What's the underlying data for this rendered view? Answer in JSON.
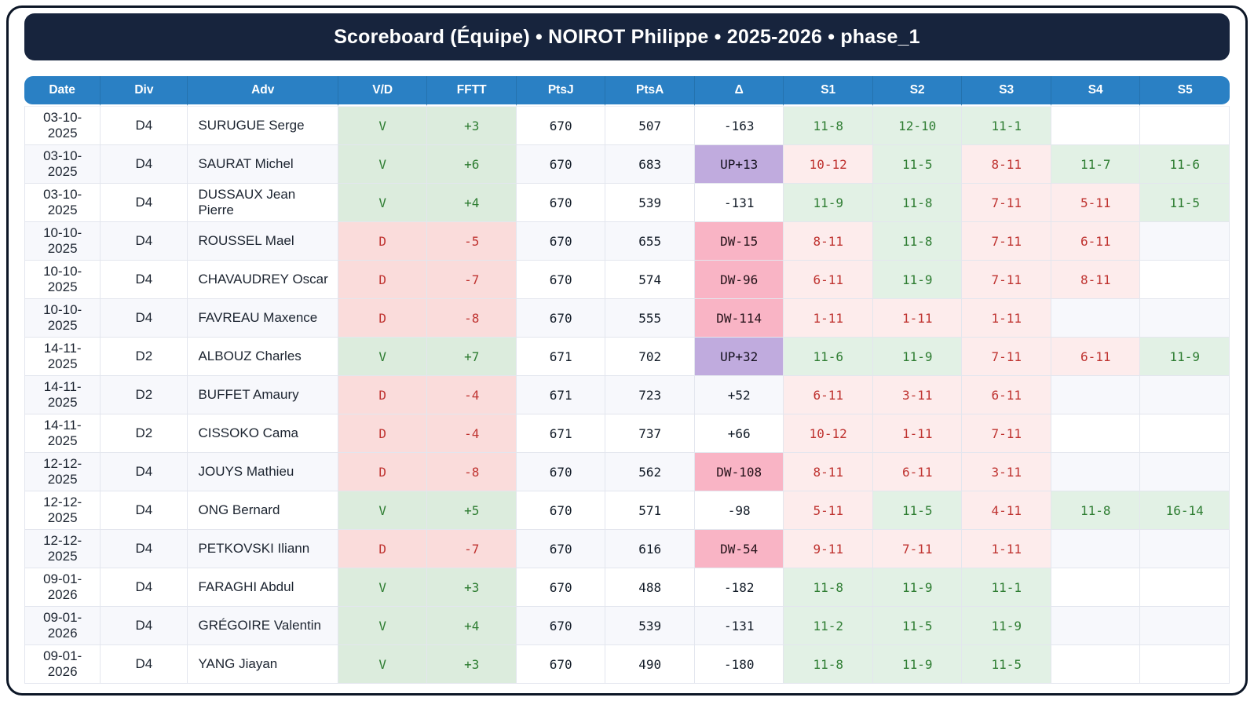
{
  "title": "Scoreboard (Équipe) • NOIROT Philippe • 2025-2026 • phase_1",
  "colors": {
    "banner_bg": "#17243d",
    "frame_border": "#0c1626",
    "header_bg": "#2a80c4",
    "even_row_bg": "#f7f8fc",
    "win_bg": "#dcecdd",
    "win_text": "#2e7d32",
    "loss_bg": "#fadcdb",
    "loss_text": "#bf3330",
    "set_win_bg": "#e2f1e5",
    "set_loss_bg": "#fdecec",
    "delta_up_bg": "#c0abde",
    "delta_down_bg": "#f9b4c5",
    "grid_line": "#e3e6ee"
  },
  "table": {
    "columns": [
      "Date",
      "Div",
      "Adv",
      "V/D",
      "FFTT",
      "PtsJ",
      "PtsA",
      "Δ",
      "S1",
      "S2",
      "S3",
      "S4",
      "S5"
    ],
    "rows": [
      {
        "date": "03-10-2025",
        "div": "D4",
        "adv": "SURUGUE Serge",
        "vd": "V",
        "fftt": "+3",
        "ptsj": "670",
        "ptsa": "507",
        "delta": "-163",
        "delta_kind": "plain",
        "sets": [
          {
            "score": "11-8",
            "won": true
          },
          {
            "score": "12-10",
            "won": true
          },
          {
            "score": "11-1",
            "won": true
          },
          null,
          null
        ]
      },
      {
        "date": "03-10-2025",
        "div": "D4",
        "adv": "SAURAT Michel",
        "vd": "V",
        "fftt": "+6",
        "ptsj": "670",
        "ptsa": "683",
        "delta": "UP+13",
        "delta_kind": "up",
        "sets": [
          {
            "score": "10-12",
            "won": false
          },
          {
            "score": "11-5",
            "won": true
          },
          {
            "score": "8-11",
            "won": false
          },
          {
            "score": "11-7",
            "won": true
          },
          {
            "score": "11-6",
            "won": true
          }
        ]
      },
      {
        "date": "03-10-2025",
        "div": "D4",
        "adv": "DUSSAUX Jean Pierre",
        "vd": "V",
        "fftt": "+4",
        "ptsj": "670",
        "ptsa": "539",
        "delta": "-131",
        "delta_kind": "plain",
        "sets": [
          {
            "score": "11-9",
            "won": true
          },
          {
            "score": "11-8",
            "won": true
          },
          {
            "score": "7-11",
            "won": false
          },
          {
            "score": "5-11",
            "won": false
          },
          {
            "score": "11-5",
            "won": true
          }
        ]
      },
      {
        "date": "10-10-2025",
        "div": "D4",
        "adv": "ROUSSEL Mael",
        "vd": "D",
        "fftt": "-5",
        "ptsj": "670",
        "ptsa": "655",
        "delta": "DW-15",
        "delta_kind": "dw",
        "sets": [
          {
            "score": "8-11",
            "won": false
          },
          {
            "score": "11-8",
            "won": true
          },
          {
            "score": "7-11",
            "won": false
          },
          {
            "score": "6-11",
            "won": false
          },
          null
        ]
      },
      {
        "date": "10-10-2025",
        "div": "D4",
        "adv": "CHAVAUDREY Oscar",
        "vd": "D",
        "fftt": "-7",
        "ptsj": "670",
        "ptsa": "574",
        "delta": "DW-96",
        "delta_kind": "dw",
        "sets": [
          {
            "score": "6-11",
            "won": false
          },
          {
            "score": "11-9",
            "won": true
          },
          {
            "score": "7-11",
            "won": false
          },
          {
            "score": "8-11",
            "won": false
          },
          null
        ]
      },
      {
        "date": "10-10-2025",
        "div": "D4",
        "adv": "FAVREAU Maxence",
        "vd": "D",
        "fftt": "-8",
        "ptsj": "670",
        "ptsa": "555",
        "delta": "DW-114",
        "delta_kind": "dw",
        "sets": [
          {
            "score": "1-11",
            "won": false
          },
          {
            "score": "1-11",
            "won": false
          },
          {
            "score": "1-11",
            "won": false
          },
          null,
          null
        ]
      },
      {
        "date": "14-11-2025",
        "div": "D2",
        "adv": "ALBOUZ Charles",
        "vd": "V",
        "fftt": "+7",
        "ptsj": "671",
        "ptsa": "702",
        "delta": "UP+32",
        "delta_kind": "up",
        "sets": [
          {
            "score": "11-6",
            "won": true
          },
          {
            "score": "11-9",
            "won": true
          },
          {
            "score": "7-11",
            "won": false
          },
          {
            "score": "6-11",
            "won": false
          },
          {
            "score": "11-9",
            "won": true
          }
        ]
      },
      {
        "date": "14-11-2025",
        "div": "D2",
        "adv": "BUFFET Amaury",
        "vd": "D",
        "fftt": "-4",
        "ptsj": "671",
        "ptsa": "723",
        "delta": "+52",
        "delta_kind": "plain",
        "sets": [
          {
            "score": "6-11",
            "won": false
          },
          {
            "score": "3-11",
            "won": false
          },
          {
            "score": "6-11",
            "won": false
          },
          null,
          null
        ]
      },
      {
        "date": "14-11-2025",
        "div": "D2",
        "adv": "CISSOKO Cama",
        "vd": "D",
        "fftt": "-4",
        "ptsj": "671",
        "ptsa": "737",
        "delta": "+66",
        "delta_kind": "plain",
        "sets": [
          {
            "score": "10-12",
            "won": false
          },
          {
            "score": "1-11",
            "won": false
          },
          {
            "score": "7-11",
            "won": false
          },
          null,
          null
        ]
      },
      {
        "date": "12-12-2025",
        "div": "D4",
        "adv": "JOUYS Mathieu",
        "vd": "D",
        "fftt": "-8",
        "ptsj": "670",
        "ptsa": "562",
        "delta": "DW-108",
        "delta_kind": "dw",
        "sets": [
          {
            "score": "8-11",
            "won": false
          },
          {
            "score": "6-11",
            "won": false
          },
          {
            "score": "3-11",
            "won": false
          },
          null,
          null
        ]
      },
      {
        "date": "12-12-2025",
        "div": "D4",
        "adv": "ONG Bernard",
        "vd": "V",
        "fftt": "+5",
        "ptsj": "670",
        "ptsa": "571",
        "delta": "-98",
        "delta_kind": "plain",
        "sets": [
          {
            "score": "5-11",
            "won": false
          },
          {
            "score": "11-5",
            "won": true
          },
          {
            "score": "4-11",
            "won": false
          },
          {
            "score": "11-8",
            "won": true
          },
          {
            "score": "16-14",
            "won": true
          }
        ]
      },
      {
        "date": "12-12-2025",
        "div": "D4",
        "adv": "PETKOVSKI Iliann",
        "vd": "D",
        "fftt": "-7",
        "ptsj": "670",
        "ptsa": "616",
        "delta": "DW-54",
        "delta_kind": "dw",
        "sets": [
          {
            "score": "9-11",
            "won": false
          },
          {
            "score": "7-11",
            "won": false
          },
          {
            "score": "1-11",
            "won": false
          },
          null,
          null
        ]
      },
      {
        "date": "09-01-2026",
        "div": "D4",
        "adv": "FARAGHI Abdul",
        "vd": "V",
        "fftt": "+3",
        "ptsj": "670",
        "ptsa": "488",
        "delta": "-182",
        "delta_kind": "plain",
        "sets": [
          {
            "score": "11-8",
            "won": true
          },
          {
            "score": "11-9",
            "won": true
          },
          {
            "score": "11-1",
            "won": true
          },
          null,
          null
        ]
      },
      {
        "date": "09-01-2026",
        "div": "D4",
        "adv": "GRÉGOIRE Valentin",
        "vd": "V",
        "fftt": "+4",
        "ptsj": "670",
        "ptsa": "539",
        "delta": "-131",
        "delta_kind": "plain",
        "sets": [
          {
            "score": "11-2",
            "won": true
          },
          {
            "score": "11-5",
            "won": true
          },
          {
            "score": "11-9",
            "won": true
          },
          null,
          null
        ]
      },
      {
        "date": "09-01-2026",
        "div": "D4",
        "adv": "YANG Jiayan",
        "vd": "V",
        "fftt": "+3",
        "ptsj": "670",
        "ptsa": "490",
        "delta": "-180",
        "delta_kind": "plain",
        "sets": [
          {
            "score": "11-8",
            "won": true
          },
          {
            "score": "11-9",
            "won": true
          },
          {
            "score": "11-5",
            "won": true
          },
          null,
          null
        ]
      }
    ]
  }
}
